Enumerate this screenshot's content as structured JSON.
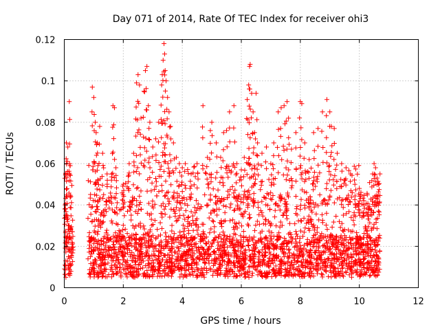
{
  "chart_data": {
    "type": "scatter",
    "title": "Day 071 of 2014, Rate Of TEC Index for receiver ohi3",
    "xlabel": "GPS time / hours",
    "ylabel": "ROTI / TECUs",
    "xlim": [
      0,
      12
    ],
    "ylim": [
      0,
      0.12
    ],
    "xticks": [
      "0",
      "2",
      "4",
      "6",
      "8",
      "10",
      "12"
    ],
    "yticks": [
      "0",
      "0.02",
      "0.04",
      "0.06",
      "0.08",
      "0.1",
      "0.12"
    ],
    "grid": true,
    "marker": "+",
    "color": "#ff0000",
    "data_coverage": {
      "segments_hours": [
        [
          0.0,
          0.3
        ],
        [
          0.8,
          10.7
        ]
      ],
      "baseline_range": [
        0.005,
        0.025
      ],
      "typical_upper": 0.06,
      "max_value": 0.118
    },
    "series": [
      {
        "name": "ROTI",
        "points": [
          [
            0.05,
            0.055
          ],
          [
            0.07,
            0.07
          ],
          [
            0.12,
            0.068
          ],
          [
            0.17,
            0.09
          ],
          [
            0.18,
            0.06
          ],
          [
            0.2,
            0.059
          ],
          [
            0.03,
            0.04
          ],
          [
            0.1,
            0.035
          ],
          [
            0.14,
            0.03
          ],
          [
            0.22,
            0.028
          ],
          [
            0.06,
            0.02
          ],
          [
            0.15,
            0.022
          ],
          [
            0.95,
            0.097
          ],
          [
            1.0,
            0.092
          ],
          [
            1.05,
            0.08
          ],
          [
            1.08,
            0.075
          ],
          [
            1.12,
            0.07
          ],
          [
            1.2,
            0.078
          ],
          [
            1.3,
            0.065
          ],
          [
            1.45,
            0.055
          ],
          [
            1.6,
            0.052
          ],
          [
            1.65,
            0.088
          ],
          [
            1.7,
            0.087
          ],
          [
            1.75,
            0.058
          ],
          [
            2.0,
            0.05
          ],
          [
            2.2,
            0.06
          ],
          [
            2.35,
            0.065
          ],
          [
            2.45,
            0.099
          ],
          [
            2.5,
            0.103
          ],
          [
            2.55,
            0.098
          ],
          [
            2.6,
            0.082
          ],
          [
            2.7,
            0.095
          ],
          [
            2.75,
            0.105
          ],
          [
            2.8,
            0.107
          ],
          [
            2.85,
            0.088
          ],
          [
            2.9,
            0.08
          ],
          [
            3.0,
            0.068
          ],
          [
            3.1,
            0.072
          ],
          [
            3.2,
            0.08
          ],
          [
            3.3,
            0.098
          ],
          [
            3.32,
            0.103
          ],
          [
            3.35,
            0.11
          ],
          [
            3.38,
            0.118
          ],
          [
            3.4,
            0.113
          ],
          [
            3.42,
            0.105
          ],
          [
            3.45,
            0.1
          ],
          [
            3.5,
            0.092
          ],
          [
            3.55,
            0.085
          ],
          [
            3.6,
            0.078
          ],
          [
            3.7,
            0.07
          ],
          [
            3.8,
            0.063
          ],
          [
            3.9,
            0.06
          ],
          [
            4.0,
            0.058
          ],
          [
            4.1,
            0.06
          ],
          [
            4.3,
            0.055
          ],
          [
            4.5,
            0.06
          ],
          [
            4.7,
            0.088
          ],
          [
            4.85,
            0.063
          ],
          [
            4.95,
            0.076
          ],
          [
            5.0,
            0.08
          ],
          [
            5.15,
            0.07
          ],
          [
            5.3,
            0.063
          ],
          [
            5.4,
            0.075
          ],
          [
            5.5,
            0.076
          ],
          [
            5.6,
            0.085
          ],
          [
            5.75,
            0.088
          ],
          [
            5.85,
            0.06
          ],
          [
            6.0,
            0.057
          ],
          [
            6.1,
            0.063
          ],
          [
            6.2,
            0.091
          ],
          [
            6.25,
            0.098
          ],
          [
            6.28,
            0.107
          ],
          [
            6.3,
            0.108
          ],
          [
            6.35,
            0.094
          ],
          [
            6.4,
            0.085
          ],
          [
            6.45,
            0.075
          ],
          [
            6.5,
            0.094
          ],
          [
            6.55,
            0.07
          ],
          [
            6.7,
            0.065
          ],
          [
            6.85,
            0.068
          ],
          [
            7.0,
            0.06
          ],
          [
            7.1,
            0.07
          ],
          [
            7.25,
            0.085
          ],
          [
            7.35,
            0.087
          ],
          [
            7.45,
            0.088
          ],
          [
            7.55,
            0.09
          ],
          [
            7.6,
            0.082
          ],
          [
            7.7,
            0.067
          ],
          [
            7.85,
            0.075
          ],
          [
            8.0,
            0.09
          ],
          [
            8.05,
            0.089
          ],
          [
            8.15,
            0.07
          ],
          [
            8.3,
            0.062
          ],
          [
            8.45,
            0.075
          ],
          [
            8.6,
            0.077
          ],
          [
            8.75,
            0.085
          ],
          [
            8.9,
            0.091
          ],
          [
            9.0,
            0.085
          ],
          [
            9.05,
            0.078
          ],
          [
            9.15,
            0.077
          ],
          [
            9.25,
            0.065
          ],
          [
            9.4,
            0.06
          ],
          [
            9.55,
            0.058
          ],
          [
            9.7,
            0.055
          ],
          [
            9.85,
            0.05
          ],
          [
            10.0,
            0.048
          ],
          [
            10.15,
            0.04
          ],
          [
            10.3,
            0.038
          ],
          [
            10.45,
            0.055
          ],
          [
            10.5,
            0.06
          ],
          [
            10.55,
            0.058
          ],
          [
            10.6,
            0.053
          ],
          [
            10.65,
            0.05
          ],
          [
            10.7,
            0.055
          ]
        ]
      }
    ]
  }
}
